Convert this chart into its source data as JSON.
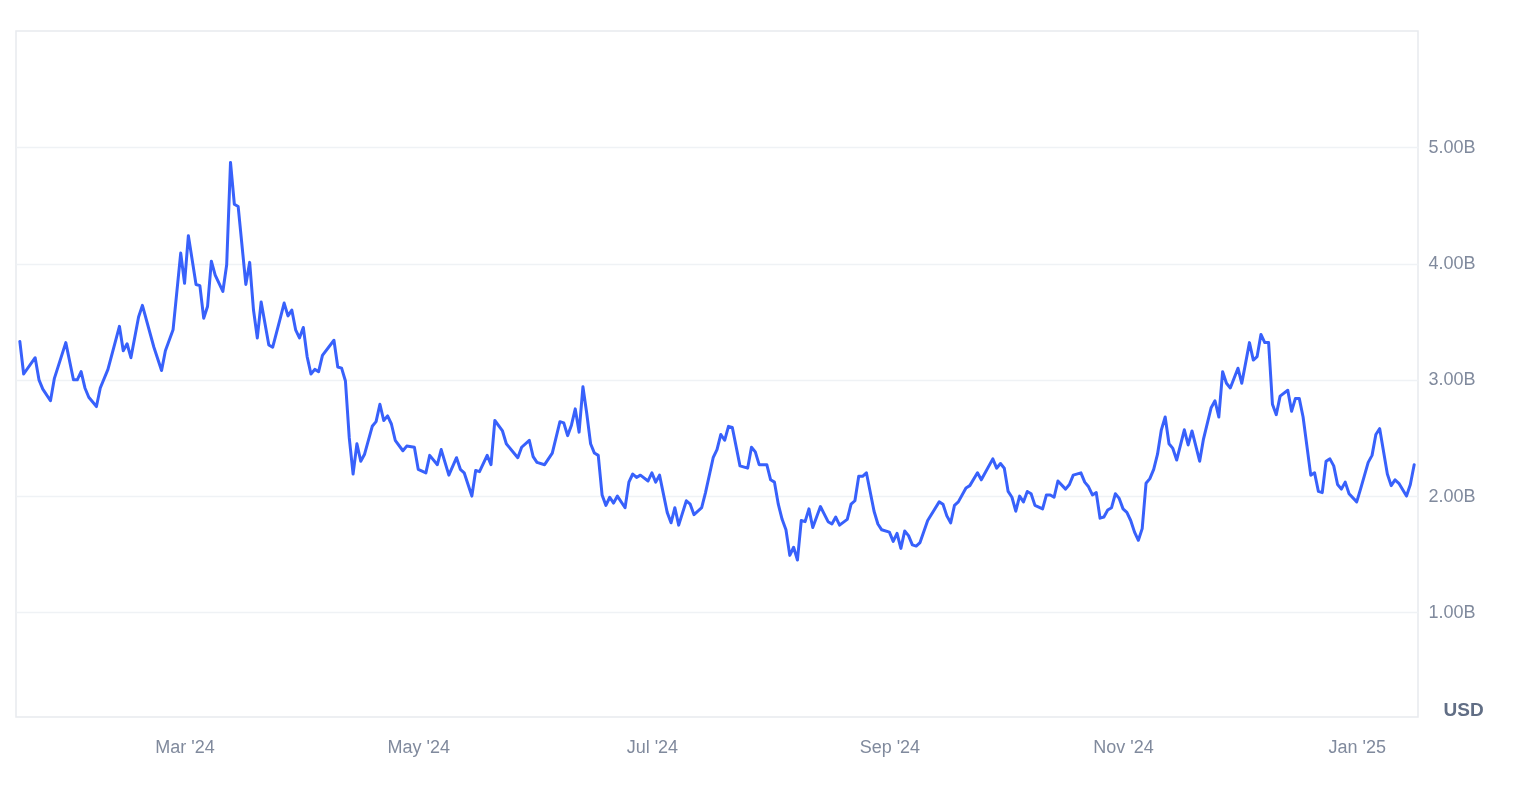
{
  "chart_data": {
    "type": "line",
    "x": [
      "2024-01-18",
      "2024-01-19",
      "2024-01-22",
      "2024-01-23",
      "2024-01-24",
      "2024-01-26",
      "2024-01-27",
      "2024-01-30",
      "2024-02-01",
      "2024-02-02",
      "2024-02-03",
      "2024-02-04",
      "2024-02-05",
      "2024-02-07",
      "2024-02-08",
      "2024-02-10",
      "2024-02-13",
      "2024-02-14",
      "2024-02-15",
      "2024-02-16",
      "2024-02-18",
      "2024-02-19",
      "2024-02-22",
      "2024-02-24",
      "2024-02-25",
      "2024-02-27",
      "2024-02-29",
      "2024-03-01",
      "2024-03-02",
      "2024-03-04",
      "2024-03-05",
      "2024-03-06",
      "2024-03-07",
      "2024-03-08",
      "2024-03-09",
      "2024-03-11",
      "2024-03-12",
      "2024-03-13",
      "2024-03-14",
      "2024-03-15",
      "2024-03-17",
      "2024-03-18",
      "2024-03-19",
      "2024-03-20",
      "2024-03-21",
      "2024-03-23",
      "2024-03-24",
      "2024-03-26",
      "2024-03-27",
      "2024-03-28",
      "2024-03-29",
      "2024-03-30",
      "2024-03-31",
      "2024-04-01",
      "2024-04-02",
      "2024-04-03",
      "2024-04-04",
      "2024-04-05",
      "2024-04-06",
      "2024-04-09",
      "2024-04-10",
      "2024-04-11",
      "2024-04-12",
      "2024-04-13",
      "2024-04-14",
      "2024-04-15",
      "2024-04-16",
      "2024-04-17",
      "2024-04-19",
      "2024-04-20",
      "2024-04-21",
      "2024-04-22",
      "2024-04-23",
      "2024-04-24",
      "2024-04-25",
      "2024-04-27",
      "2024-04-28",
      "2024-04-30",
      "2024-05-01",
      "2024-05-03",
      "2024-05-04",
      "2024-05-06",
      "2024-05-07",
      "2024-05-09",
      "2024-05-11",
      "2024-05-12",
      "2024-05-13",
      "2024-05-15",
      "2024-05-16",
      "2024-05-17",
      "2024-05-19",
      "2024-05-20",
      "2024-05-21",
      "2024-05-23",
      "2024-05-24",
      "2024-05-27",
      "2024-05-28",
      "2024-05-30",
      "2024-05-31",
      "2024-06-01",
      "2024-06-03",
      "2024-06-05",
      "2024-06-07",
      "2024-06-08",
      "2024-06-09",
      "2024-06-10",
      "2024-06-11",
      "2024-06-12",
      "2024-06-13",
      "2024-06-14",
      "2024-06-15",
      "2024-06-16",
      "2024-06-17",
      "2024-06-18",
      "2024-06-19",
      "2024-06-20",
      "2024-06-21",
      "2024-06-22",
      "2024-06-24",
      "2024-06-25",
      "2024-06-26",
      "2024-06-27",
      "2024-06-28",
      "2024-06-30",
      "2024-07-01",
      "2024-07-02",
      "2024-07-03",
      "2024-07-05",
      "2024-07-06",
      "2024-07-07",
      "2024-07-08",
      "2024-07-10",
      "2024-07-11",
      "2024-07-12",
      "2024-07-14",
      "2024-07-15",
      "2024-07-17",
      "2024-07-18",
      "2024-07-19",
      "2024-07-20",
      "2024-07-21",
      "2024-07-22",
      "2024-07-24",
      "2024-07-26",
      "2024-07-27",
      "2024-07-28",
      "2024-07-29",
      "2024-07-31",
      "2024-08-01",
      "2024-08-02",
      "2024-08-03",
      "2024-08-04",
      "2024-08-05",
      "2024-08-06",
      "2024-08-07",
      "2024-08-08",
      "2024-08-09",
      "2024-08-10",
      "2024-08-11",
      "2024-08-12",
      "2024-08-14",
      "2024-08-16",
      "2024-08-17",
      "2024-08-18",
      "2024-08-19",
      "2024-08-21",
      "2024-08-22",
      "2024-08-23",
      "2024-08-24",
      "2024-08-25",
      "2024-08-26",
      "2024-08-28",
      "2024-08-29",
      "2024-08-30",
      "2024-09-01",
      "2024-09-02",
      "2024-09-03",
      "2024-09-04",
      "2024-09-05",
      "2024-09-06",
      "2024-09-07",
      "2024-09-08",
      "2024-09-09",
      "2024-09-11",
      "2024-09-14",
      "2024-09-15",
      "2024-09-16",
      "2024-09-17",
      "2024-09-18",
      "2024-09-19",
      "2024-09-21",
      "2024-09-22",
      "2024-09-24",
      "2024-09-25",
      "2024-09-28",
      "2024-09-29",
      "2024-09-30",
      "2024-10-01",
      "2024-10-02",
      "2024-10-03",
      "2024-10-04",
      "2024-10-05",
      "2024-10-06",
      "2024-10-07",
      "2024-10-08",
      "2024-10-09",
      "2024-10-11",
      "2024-10-12",
      "2024-10-13",
      "2024-10-14",
      "2024-10-15",
      "2024-10-17",
      "2024-10-18",
      "2024-10-19",
      "2024-10-21",
      "2024-10-22",
      "2024-10-23",
      "2024-10-24",
      "2024-10-25",
      "2024-10-26",
      "2024-10-27",
      "2024-10-28",
      "2024-10-29",
      "2024-10-30",
      "2024-10-31",
      "2024-11-01",
      "2024-11-02",
      "2024-11-03",
      "2024-11-04",
      "2024-11-05",
      "2024-11-06",
      "2024-11-07",
      "2024-11-08",
      "2024-11-09",
      "2024-11-10",
      "2024-11-11",
      "2024-11-12",
      "2024-11-13",
      "2024-11-14",
      "2024-11-15",
      "2024-11-17",
      "2024-11-18",
      "2024-11-19",
      "2024-11-21",
      "2024-11-22",
      "2024-11-24",
      "2024-11-25",
      "2024-11-26",
      "2024-11-27",
      "2024-11-28",
      "2024-11-29",
      "2024-12-01",
      "2024-12-02",
      "2024-12-04",
      "2024-12-05",
      "2024-12-06",
      "2024-12-07",
      "2024-12-08",
      "2024-12-09",
      "2024-12-10",
      "2024-12-11",
      "2024-12-12",
      "2024-12-14",
      "2024-12-15",
      "2024-12-16",
      "2024-12-17",
      "2024-12-18",
      "2024-12-20",
      "2024-12-21",
      "2024-12-22",
      "2024-12-23",
      "2024-12-24",
      "2024-12-25",
      "2024-12-26",
      "2024-12-27",
      "2024-12-28",
      "2024-12-29",
      "2024-12-30",
      "2025-01-01",
      "2025-01-02",
      "2025-01-04",
      "2025-01-05",
      "2025-01-06",
      "2025-01-07",
      "2025-01-09",
      "2025-01-10",
      "2025-01-11",
      "2025-01-12",
      "2025-01-14",
      "2025-01-15",
      "2025-01-16"
    ],
    "series": [
      {
        "color": "#3861fb",
        "values": [
          3.33,
          3.05,
          3.19,
          3.0,
          2.92,
          2.82,
          3.01,
          3.32,
          3.0,
          3.0,
          3.07,
          2.93,
          2.85,
          2.77,
          2.93,
          3.09,
          3.46,
          3.25,
          3.31,
          3.19,
          3.54,
          3.64,
          3.28,
          3.08,
          3.25,
          3.43,
          4.09,
          3.83,
          4.24,
          3.82,
          3.81,
          3.53,
          3.63,
          4.02,
          3.9,
          3.76,
          3.99,
          4.87,
          4.51,
          4.49,
          3.82,
          4.01,
          3.6,
          3.36,
          3.67,
          3.3,
          3.28,
          3.53,
          3.66,
          3.55,
          3.6,
          3.43,
          3.36,
          3.45,
          3.2,
          3.05,
          3.09,
          3.07,
          3.21,
          3.34,
          3.11,
          3.1,
          2.99,
          2.5,
          2.19,
          2.45,
          2.3,
          2.36,
          2.6,
          2.64,
          2.79,
          2.65,
          2.69,
          2.62,
          2.48,
          2.39,
          2.43,
          2.42,
          2.23,
          2.2,
          2.35,
          2.27,
          2.4,
          2.18,
          2.33,
          2.23,
          2.2,
          2.0,
          2.22,
          2.21,
          2.35,
          2.27,
          2.65,
          2.56,
          2.45,
          2.33,
          2.42,
          2.48,
          2.34,
          2.29,
          2.27,
          2.37,
          2.64,
          2.63,
          2.52,
          2.61,
          2.75,
          2.55,
          2.94,
          2.71,
          2.45,
          2.37,
          2.35,
          2.01,
          1.92,
          1.99,
          1.94,
          2.0,
          1.9,
          2.12,
          2.19,
          2.16,
          2.18,
          2.13,
          2.2,
          2.12,
          2.18,
          1.86,
          1.77,
          1.9,
          1.75,
          1.96,
          1.93,
          1.84,
          1.9,
          2.03,
          2.33,
          2.4,
          2.53,
          2.48,
          2.6,
          2.59,
          2.26,
          2.24,
          2.42,
          2.38,
          2.27,
          2.27,
          2.14,
          2.12,
          1.93,
          1.8,
          1.71,
          1.49,
          1.56,
          1.45,
          1.79,
          1.78,
          1.89,
          1.73,
          1.91,
          1.78,
          1.76,
          1.82,
          1.75,
          1.8,
          1.93,
          1.96,
          2.17,
          2.17,
          2.2,
          1.87,
          1.76,
          1.71,
          1.69,
          1.61,
          1.68,
          1.55,
          1.7,
          1.66,
          1.58,
          1.57,
          1.6,
          1.79,
          1.95,
          1.93,
          1.83,
          1.77,
          1.92,
          1.95,
          2.07,
          2.09,
          2.2,
          2.14,
          2.32,
          2.24,
          2.28,
          2.24,
          2.04,
          1.99,
          1.87,
          2.0,
          1.95,
          2.04,
          2.02,
          1.92,
          1.89,
          2.01,
          2.01,
          1.99,
          2.13,
          2.06,
          2.1,
          2.18,
          2.2,
          2.12,
          2.08,
          2.01,
          2.03,
          1.81,
          1.82,
          1.88,
          1.9,
          2.02,
          1.98,
          1.89,
          1.86,
          1.79,
          1.69,
          1.62,
          1.72,
          2.11,
          2.15,
          2.23,
          2.36,
          2.57,
          2.68,
          2.45,
          2.41,
          2.31,
          2.57,
          2.44,
          2.56,
          2.3,
          2.49,
          2.76,
          2.82,
          2.68,
          3.07,
          2.97,
          2.93,
          3.1,
          2.97,
          3.32,
          3.17,
          3.2,
          3.39,
          3.32,
          3.32,
          2.79,
          2.7,
          2.86,
          2.91,
          2.73,
          2.84,
          2.84,
          2.68,
          2.18,
          2.2,
          2.04,
          2.03,
          2.3,
          2.32,
          2.26,
          2.1,
          2.06,
          2.12,
          2.02,
          1.95,
          2.06,
          2.29,
          2.35,
          2.53,
          2.58,
          2.19,
          2.09,
          2.14,
          2.11,
          2.0,
          2.1,
          2.27
        ]
      }
    ],
    "xlim": [
      "2024-01-17",
      "2025-01-17"
    ],
    "xticks": [
      {
        "value": "2024-03-01",
        "label": "Mar '24"
      },
      {
        "value": "2024-05-01",
        "label": "May '24"
      },
      {
        "value": "2024-07-01",
        "label": "Jul '24"
      },
      {
        "value": "2024-09-01",
        "label": "Sep '24"
      },
      {
        "value": "2024-11-01",
        "label": "Nov '24"
      },
      {
        "value": "2025-01-01",
        "label": "Jan '25"
      }
    ],
    "ylim": [
      0.1,
      6
    ],
    "yticks": [
      {
        "value": 1,
        "label": "1.00B"
      },
      {
        "value": 2,
        "label": "2.00B"
      },
      {
        "value": 3,
        "label": "3.00B"
      },
      {
        "value": 4,
        "label": "4.00B"
      },
      {
        "value": 5,
        "label": "5.00B"
      }
    ],
    "ylabel": "USD",
    "grid": "y"
  }
}
